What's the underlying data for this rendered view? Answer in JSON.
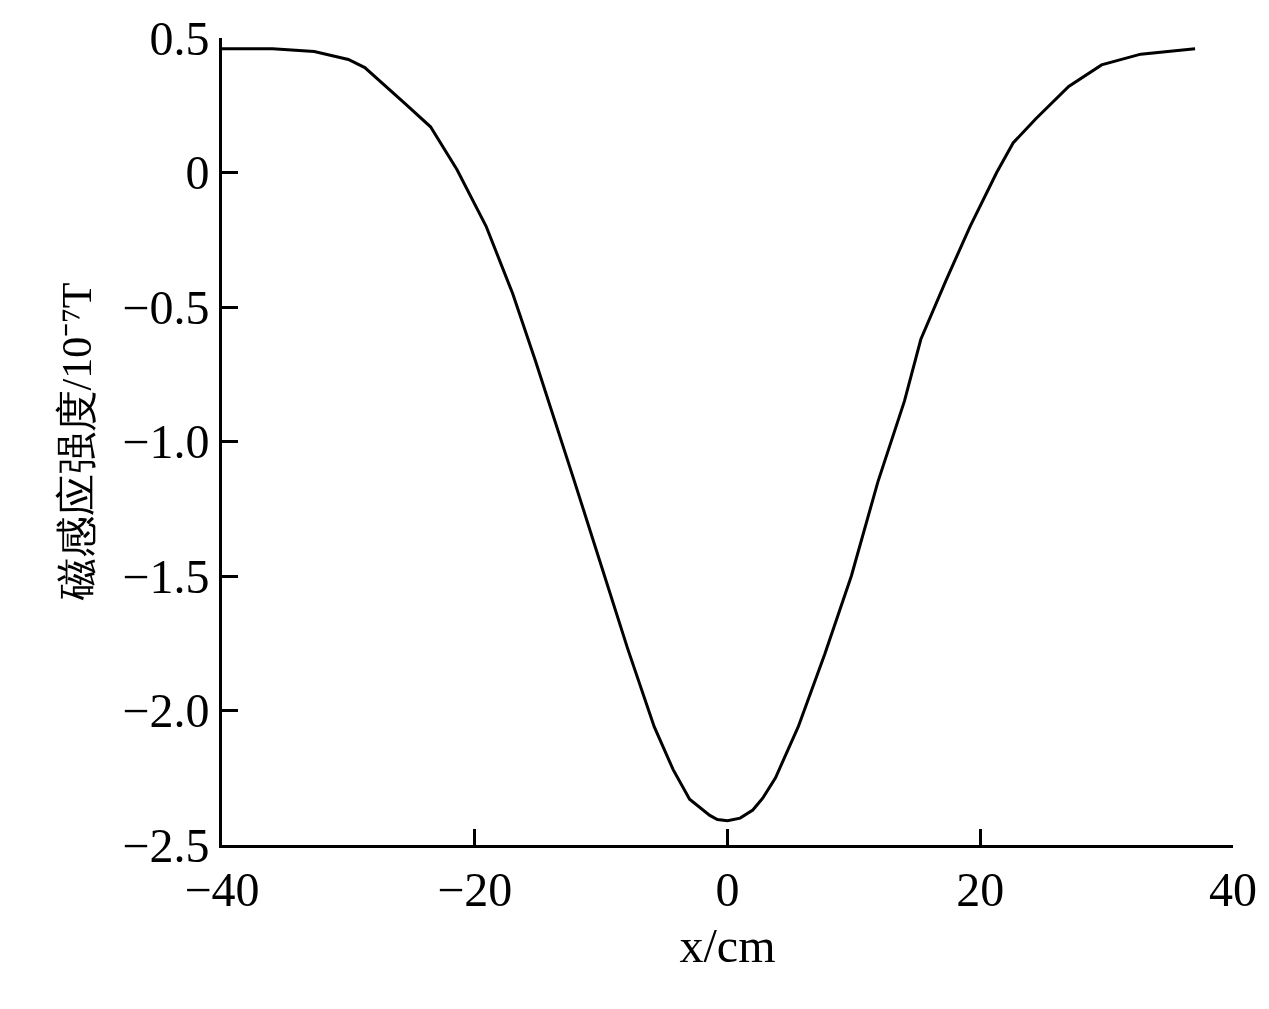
{
  "chart_data": {
    "type": "line",
    "xlabel": "x/cm",
    "ylabel": "磁感应强度/10⁻⁷T",
    "x": [
      -40,
      -36,
      -32.7,
      -30,
      -28.7,
      -25.6,
      -23.5,
      -21.4,
      -19.1,
      -17,
      -15.2,
      -12.1,
      -10,
      -7.9,
      -5.8,
      -4.3,
      -3,
      -1.4,
      -0.8,
      0,
      1,
      2,
      2.8,
      3.8,
      5.6,
      7.7,
      9.8,
      11.9,
      14,
      15.3,
      17.3,
      19.2,
      21.3,
      22.6,
      24.4,
      27,
      29.6,
      32.7,
      37
    ],
    "series": [
      {
        "color": "#000000",
        "values": [
          0.46,
          0.46,
          0.45,
          0.42,
          0.39,
          0.26,
          0.17,
          0.01,
          -0.2,
          -0.45,
          -0.7,
          -1.15,
          -1.46,
          -1.77,
          -2.06,
          -2.22,
          -2.33,
          -2.39,
          -2.405,
          -2.41,
          -2.4,
          -2.37,
          -2.325,
          -2.25,
          -2.06,
          -1.79,
          -1.5,
          -1.15,
          -0.85,
          -0.62,
          -0.4,
          -0.2,
          0.0,
          0.11,
          0.2,
          0.32,
          0.4,
          0.44,
          0.46
        ]
      }
    ],
    "xlim": [
      -40,
      40
    ],
    "xticks": [
      {
        "value": -40,
        "label": "−40"
      },
      {
        "value": -20,
        "label": "−20"
      },
      0,
      20,
      40
    ],
    "ylim": [
      -2.5,
      0.5
    ],
    "yticks": [
      0.5,
      0,
      {
        "value": -0.5,
        "label": "−0.5"
      },
      {
        "value": -1,
        "label": "−1.0"
      },
      {
        "value": -1.5,
        "label": "−1.5"
      },
      {
        "value": -2,
        "label": "−2.0"
      },
      {
        "value": -2.5,
        "label": "−2.5"
      }
    ],
    "grid": false,
    "marker": "none",
    "line_style": "solid"
  }
}
